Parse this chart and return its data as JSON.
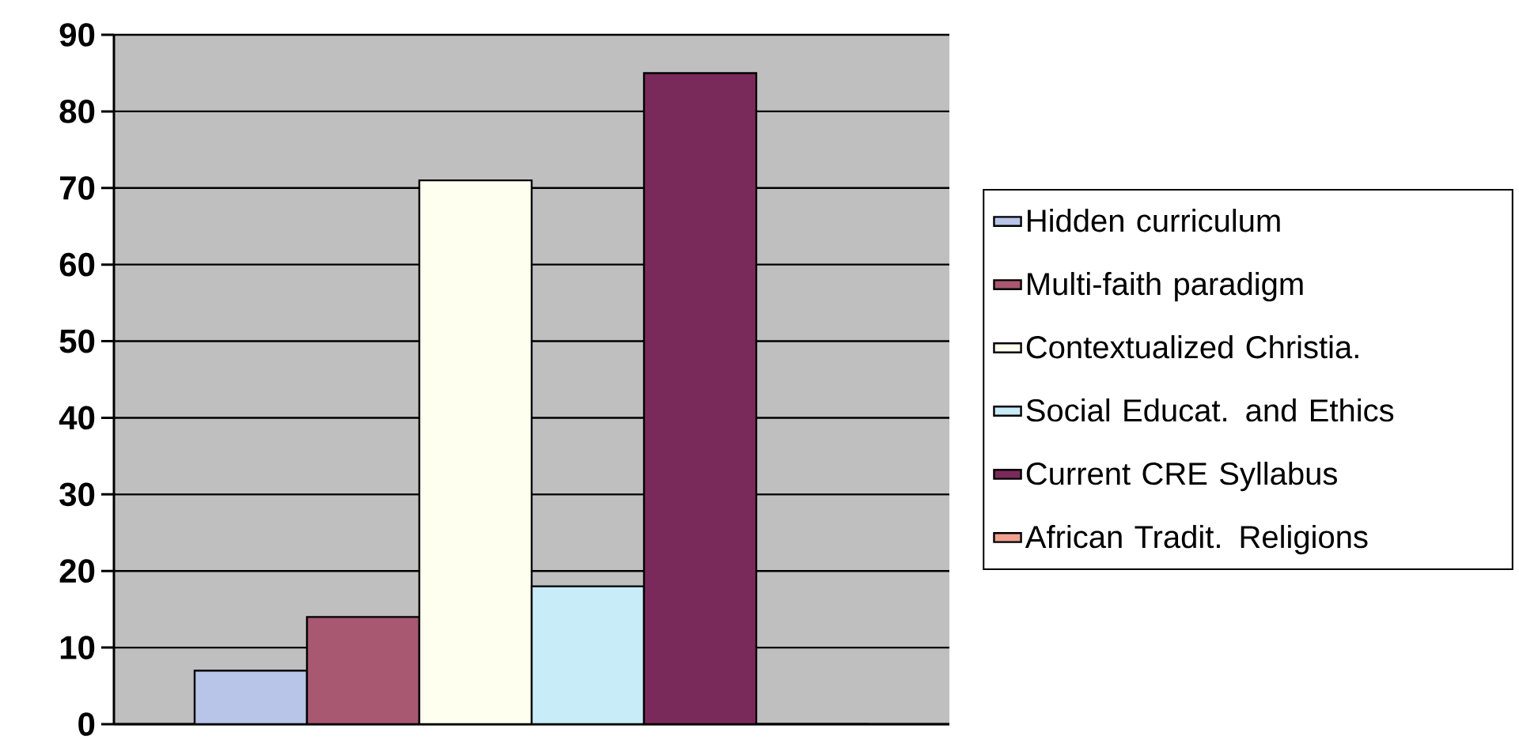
{
  "chart_data": {
    "type": "bar",
    "categories": [
      null
    ],
    "series": [
      {
        "name": "Hidden curriculum",
        "color": "#b8c4e8",
        "values": [
          7
        ]
      },
      {
        "name": "Multi-faith paradigm",
        "color": "#a85870",
        "values": [
          14
        ]
      },
      {
        "name": "Contextualized Christia.",
        "color": "#fffff0",
        "values": [
          71
        ]
      },
      {
        "name": "Social Educat. and Ethics",
        "color": "#c8ecf8",
        "values": [
          18
        ]
      },
      {
        "name": "Current CRE Syllabus",
        "color": "#7a2a5a",
        "values": [
          85
        ]
      },
      {
        "name": "African Tradit. Religions",
        "color": "#f0a090",
        "values": [
          0
        ]
      }
    ],
    "ylim": [
      0,
      90
    ],
    "yticks": [
      0,
      10,
      20,
      30,
      40,
      50,
      60,
      70,
      80,
      90
    ],
    "grid": "y",
    "legend": "right"
  }
}
